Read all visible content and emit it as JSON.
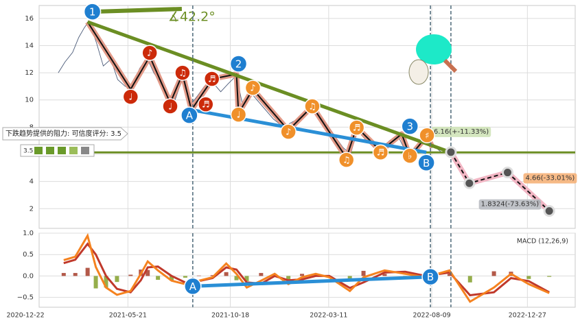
{
  "chart_data": [
    {
      "type": "pattern",
      "xlim": [
        "2021-01-11",
        "2023-03-07"
      ],
      "ylim": [
        0.55,
        16.95
      ],
      "yticks": [
        2,
        4,
        6,
        8,
        10,
        12,
        14,
        16
      ],
      "grid": true,
      "price": {
        "color": "#4a5a78",
        "x": [
          "2021-02-08",
          "2021-02-18",
          "2021-03-01",
          "2021-03-10",
          "2021-03-18",
          "2021-03-25",
          "2021-04-05",
          "2021-04-15",
          "2021-04-26",
          "2021-05-06",
          "2021-05-17",
          "2021-05-27",
          "2021-06-07",
          "2021-06-18",
          "2021-06-28",
          "2021-07-08",
          "2021-07-19",
          "2021-07-29",
          "2021-08-09",
          "2021-08-20",
          "2021-08-31",
          "2021-09-10",
          "2021-09-22",
          "2021-10-04",
          "2021-10-15",
          "2021-10-27",
          "2021-11-05",
          "2021-11-16",
          "2021-11-26",
          "2021-12-08",
          "2021-12-20",
          "2022-01-04",
          "2022-01-14",
          "2022-01-25",
          "2022-02-08",
          "2022-02-18",
          "2022-03-01",
          "2022-03-11",
          "2022-03-22",
          "2022-04-01",
          "2022-04-12",
          "2022-04-22",
          "2022-05-05",
          "2022-05-17",
          "2022-05-27",
          "2022-06-08",
          "2022-06-20",
          "2022-06-30",
          "2022-07-11",
          "2022-07-22",
          "2022-08-02",
          "2022-08-12",
          "2022-08-22"
        ],
        "values": [
          12.0,
          12.8,
          13.5,
          14.6,
          15.3,
          15.8,
          14.2,
          12.5,
          13.0,
          11.5,
          11.0,
          10.8,
          12.3,
          13.1,
          12.0,
          11.2,
          10.4,
          10.0,
          11.6,
          9.6,
          10.3,
          11.0,
          11.3,
          10.6,
          11.2,
          11.8,
          9.6,
          10.6,
          10.0,
          9.3,
          8.6,
          8.0,
          8.3,
          8.6,
          9.2,
          9.4,
          8.6,
          8.0,
          7.2,
          6.5,
          6.0,
          7.8,
          7.0,
          6.5,
          6.3,
          7.0,
          7.4,
          6.4,
          6.0,
          6.7,
          7.2,
          6.6,
          6.2
        ]
      },
      "zigzag": {
        "color": "#111111",
        "halo": "#e0907c",
        "x": [
          "2021-03-23",
          "2021-05-25",
          "2021-06-22",
          "2021-07-22",
          "2021-08-09",
          "2021-08-22",
          "2021-09-22",
          "2021-10-27",
          "2021-10-30",
          "2021-11-20",
          "2022-01-11",
          "2022-02-15",
          "2022-04-06",
          "2022-04-21",
          "2022-05-26",
          "2022-06-26",
          "2022-07-08",
          "2022-08-02",
          "2022-08-10"
        ],
        "values": [
          15.74,
          10.79,
          13.2,
          9.78,
          11.9,
          9.27,
          11.55,
          11.9,
          9.02,
          10.79,
          7.76,
          9.53,
          5.74,
          8.0,
          6.24,
          7.5,
          5.84,
          7.35,
          6.5
        ]
      },
      "trendlines": [
        {
          "color": "#6b8e23",
          "x": [
            "2021-03-23",
            "2022-09-06"
          ],
          "values": [
            15.74,
            6.14
          ]
        },
        {
          "color": "#2a8fd6",
          "x": [
            "2021-08-22",
            "2022-08-01"
          ],
          "values": [
            9.27,
            6.14
          ]
        }
      ],
      "horizontal": {
        "value": 6.14,
        "color": "#6b8e23"
      },
      "angle_line": {
        "color": "#6b8e23",
        "x": [
          "2021-03-30",
          "2021-08-08"
        ],
        "values": [
          16.49,
          16.7
        ]
      },
      "angle_label": "∡42.2°",
      "vlines": [
        "2021-08-24",
        "2022-08-07",
        "2022-09-06"
      ],
      "markers": [
        {
          "label": "1",
          "x": "2021-03-30",
          "y": 16.49,
          "color": "#1f7fd0"
        },
        {
          "label": "2",
          "x": "2021-10-30",
          "y": 12.66,
          "color": "#1f7fd0"
        },
        {
          "label": "3",
          "x": "2022-07-08",
          "y": 8.06,
          "color": "#1f7fd0"
        },
        {
          "label": "A",
          "x": "2021-08-19",
          "y": 8.87,
          "color": "#1f7fd0"
        },
        {
          "label": "B",
          "x": "2022-08-01",
          "y": 5.38,
          "color": "#1f7fd0"
        },
        {
          "label": "♩",
          "x": "2021-05-25",
          "y": 10.23,
          "color": "#cc2a0a"
        },
        {
          "label": "♪",
          "x": "2021-06-22",
          "y": 13.46,
          "color": "#cc2a0a"
        },
        {
          "label": "♩",
          "x": "2021-07-22",
          "y": 9.53,
          "color": "#cc2a0a"
        },
        {
          "label": "♫",
          "x": "2021-08-09",
          "y": 12.0,
          "color": "#cc2a0a"
        },
        {
          "label": "♬",
          "x": "2021-09-12",
          "y": 9.68,
          "color": "#cc2a0a"
        },
        {
          "label": "♬",
          "x": "2021-09-21",
          "y": 11.55,
          "color": "#cc2a0a"
        },
        {
          "label": "♪",
          "x": "2021-11-20",
          "y": 10.89,
          "color": "#f0902a"
        },
        {
          "label": "♩",
          "x": "2021-10-30",
          "y": 8.92,
          "color": "#f0902a"
        },
        {
          "label": "♪",
          "x": "2022-01-11",
          "y": 7.66,
          "color": "#f0902a"
        },
        {
          "label": "♫",
          "x": "2022-02-15",
          "y": 9.53,
          "color": "#f0902a"
        },
        {
          "label": "♫",
          "x": "2022-04-06",
          "y": 5.59,
          "color": "#f0902a"
        },
        {
          "label": "♬",
          "x": "2022-04-21",
          "y": 7.96,
          "color": "#f0902a"
        },
        {
          "label": "♬",
          "x": "2022-05-26",
          "y": 6.14,
          "color": "#f0902a"
        },
        {
          "label": "♭",
          "x": "2022-07-08",
          "y": 5.89,
          "color": "#f0902a"
        },
        {
          "label": "♯",
          "x": "2022-08-02",
          "y": 7.4,
          "color": "#f0902a"
        }
      ],
      "projection": {
        "color": "#111111",
        "halo": "#f2b6c4",
        "x": [
          "2022-09-06",
          "2022-10-03",
          "2022-11-28",
          "2023-01-28"
        ],
        "values": [
          6.16,
          3.87,
          4.66,
          1.8324
        ],
        "value_labels": [
          "6.16(+-11.33%)",
          null,
          "4.66(-33.01%)",
          "1.8324(-73.63%)"
        ]
      },
      "resistance_note": "下跌趋势提供的阻力: 可信度评分: 3.5",
      "score": "3.5"
    },
    {
      "type": "macd",
      "label": "MACD (12,26,9)",
      "xlim": [
        "2021-01-11",
        "2023-03-07"
      ],
      "ylim": [
        -0.73,
        1.0
      ],
      "yticks": [
        {
          "value": -0.5,
          "label": "−0.5"
        },
        {
          "value": 0,
          "label": "0.0"
        },
        0.5,
        {
          "value": 1,
          "label": "1.0"
        }
      ],
      "xticks": [
        "2020-12-22",
        "2021-05-21",
        "2021-10-18",
        "2022-03-11",
        "2022-08-09",
        "2022-12-27"
      ],
      "grid": true,
      "x": [
        "2021-02-16",
        "2021-03-05",
        "2021-03-23",
        "2021-04-04",
        "2021-04-19",
        "2021-05-05",
        "2021-05-25",
        "2021-06-09",
        "2021-06-19",
        "2021-07-04",
        "2021-07-24",
        "2021-08-13",
        "2021-09-02",
        "2021-09-22",
        "2021-10-12",
        "2021-10-27",
        "2021-11-11",
        "2021-12-02",
        "2021-12-22",
        "2022-01-11",
        "2022-01-31",
        "2022-02-20",
        "2022-03-12",
        "2022-04-11",
        "2022-05-01",
        "2022-06-01",
        "2022-07-01",
        "2022-07-31",
        "2022-09-04",
        "2022-10-04",
        "2022-11-08",
        "2022-12-03",
        "2022-12-29",
        "2023-01-28"
      ],
      "macd": {
        "color": "#f5821f",
        "values": [
          0.37,
          0.45,
          0.94,
          0.21,
          -0.27,
          -0.44,
          -0.35,
          0.05,
          0.34,
          0.13,
          -0.11,
          -0.19,
          -0.11,
          -0.03,
          0.29,
          0.05,
          -0.27,
          -0.11,
          0.05,
          -0.19,
          -0.03,
          0.05,
          -0.03,
          -0.35,
          -0.03,
          0.13,
          0.05,
          -0.03,
          0.13,
          -0.6,
          -0.27,
          0.05,
          -0.19,
          -0.4
        ]
      },
      "signal": {
        "color": "#c0392b",
        "values": [
          0.3,
          0.38,
          0.75,
          0.5,
          0.0,
          -0.3,
          -0.38,
          -0.1,
          0.2,
          0.22,
          0.0,
          -0.15,
          -0.12,
          -0.05,
          0.2,
          0.15,
          -0.15,
          -0.18,
          0.0,
          -0.1,
          -0.08,
          0.0,
          0.0,
          -0.28,
          -0.15,
          0.08,
          0.1,
          0.0,
          0.08,
          -0.45,
          -0.38,
          -0.05,
          -0.12,
          -0.38
        ]
      },
      "histogram": {
        "up_color": "#a0301c",
        "down_color": "#7a9a1e",
        "values": [
          0.07,
          0.07,
          0.19,
          -0.29,
          -0.27,
          -0.14,
          0.03,
          0.15,
          0.14,
          -0.09,
          -0.11,
          -0.04,
          0.01,
          0.02,
          0.09,
          -0.1,
          -0.12,
          0.07,
          0.05,
          -0.09,
          0.05,
          0.05,
          -0.03,
          -0.07,
          0.12,
          0.05,
          -0.05,
          -0.03,
          0.05,
          -0.15,
          0.11,
          0.1,
          -0.07,
          -0.02
        ]
      },
      "ab_line": {
        "color": "#2a8fd6",
        "x": [
          "2021-08-24",
          "2022-08-07"
        ],
        "values": [
          -0.24,
          -0.02
        ]
      },
      "markers": [
        {
          "label": "A",
          "x": "2021-08-24",
          "y": -0.24,
          "color": "#1f7fd0"
        },
        {
          "label": "B",
          "x": "2022-08-07",
          "y": -0.02,
          "color": "#1f7fd0"
        }
      ],
      "vlines": [
        "2021-08-24",
        "2022-08-07",
        "2022-09-06"
      ]
    }
  ]
}
